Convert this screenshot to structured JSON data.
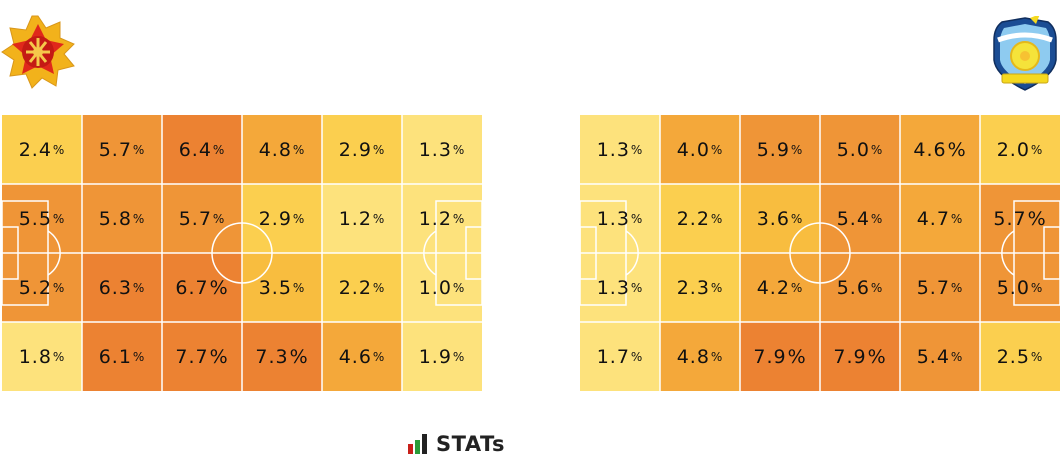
{
  "brand": {
    "wordmark": "STATs"
  },
  "colors": {
    "scale": [
      "#fef3a0",
      "#fde27c",
      "#fbcf4f",
      "#f8bd3f",
      "#f4a83a",
      "#ef9537",
      "#ec8232"
    ],
    "lines": "#ffffff"
  },
  "chart_data": [
    {
      "type": "heatmap",
      "team": "home",
      "unit": "%",
      "rows": 4,
      "cols": 6,
      "values": [
        [
          2.4,
          5.7,
          6.4,
          4.8,
          2.9,
          1.3
        ],
        [
          5.5,
          5.8,
          5.7,
          2.9,
          1.2,
          1.2
        ],
        [
          5.2,
          6.3,
          6.7,
          3.5,
          2.2,
          1.0
        ],
        [
          1.8,
          6.1,
          7.7,
          7.3,
          4.6,
          1.9
        ]
      ],
      "labels": [
        [
          "2.4",
          "5.7",
          "6.4",
          "4.8",
          "2.9",
          "1.3"
        ],
        [
          "5.5",
          "5.8",
          "5.7",
          "2.9",
          "1.2",
          "1.2"
        ],
        [
          "5.2",
          "6.3",
          "6.7",
          "3.5",
          "2.2",
          "1.0"
        ],
        [
          "1.8",
          "6.1",
          "7.7",
          "7.3",
          "4.6",
          "1.9"
        ]
      ],
      "big_pct": [
        [
          2,
          2
        ],
        [
          3,
          2
        ],
        [
          3,
          3
        ]
      ]
    },
    {
      "type": "heatmap",
      "team": "away",
      "unit": "%",
      "rows": 4,
      "cols": 6,
      "values": [
        [
          1.3,
          4.0,
          5.9,
          5.0,
          4.6,
          2.0
        ],
        [
          1.3,
          2.2,
          3.6,
          5.4,
          4.7,
          5.7
        ],
        [
          1.3,
          2.3,
          4.2,
          5.6,
          5.7,
          5.0
        ],
        [
          1.7,
          4.8,
          7.9,
          7.9,
          5.4,
          2.5
        ]
      ],
      "labels": [
        [
          "1.3",
          "4.0",
          "5.9",
          "5.0",
          "4.6",
          "2.0"
        ],
        [
          "1.3",
          "2.2",
          "3.6",
          "5.4",
          "4.7",
          "5.7"
        ],
        [
          "1.3",
          "2.3",
          "4.2",
          "5.6",
          "5.7",
          "5.0"
        ],
        [
          "1.7",
          "4.8",
          "7.9",
          "7.9",
          "5.4",
          "2.5"
        ]
      ],
      "big_pct": [
        [
          0,
          4
        ],
        [
          1,
          5
        ],
        [
          3,
          2
        ],
        [
          3,
          3
        ]
      ]
    }
  ]
}
